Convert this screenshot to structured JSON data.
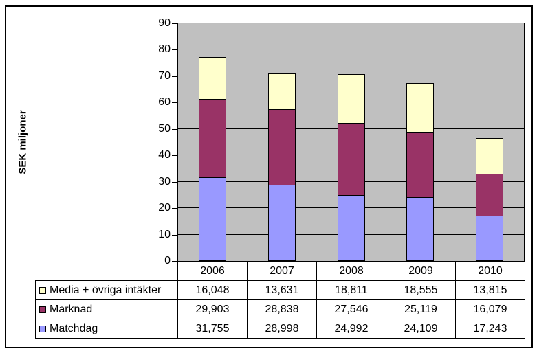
{
  "chart_data": {
    "type": "bar",
    "stacked": true,
    "title": "",
    "ylabel": "SEK miljoner",
    "xlabel": "",
    "categories": [
      "2006",
      "2007",
      "2008",
      "2009",
      "2010"
    ],
    "series": [
      {
        "name": "Matchdag",
        "color": "#9999FF",
        "values": [
          31.755,
          28.998,
          24.992,
          24.109,
          17.243
        ],
        "display": [
          "31,755",
          "28,998",
          "24,992",
          "24,109",
          "17,243"
        ]
      },
      {
        "name": "Marknad",
        "color": "#993366",
        "values": [
          29.903,
          28.838,
          27.546,
          25.119,
          16.079
        ],
        "display": [
          "29,903",
          "28,838",
          "27,546",
          "25,119",
          "16,079"
        ]
      },
      {
        "name": "Media + övriga intäkter",
        "color": "#FFFFCC",
        "values": [
          16.048,
          13.631,
          18.811,
          18.555,
          13.815
        ],
        "display": [
          "16,048",
          "13,631",
          "18,811",
          "18,555",
          "13,815"
        ]
      }
    ],
    "table_row_order_top_to_bottom": [
      "Media + övriga intäkter",
      "Marknad",
      "Matchdag"
    ],
    "ylim": [
      0,
      90
    ],
    "ytick_interval": 10,
    "yticks": [
      0,
      10,
      20,
      30,
      40,
      50,
      60,
      70,
      80,
      90
    ],
    "grid": true,
    "legend_position": "table-left",
    "colors": {
      "plot_background": "#C0C0C0",
      "gridline": "#000000",
      "axis": "#000000",
      "page_background": "#FFFFFF",
      "frame_border": "#000000"
    }
  }
}
